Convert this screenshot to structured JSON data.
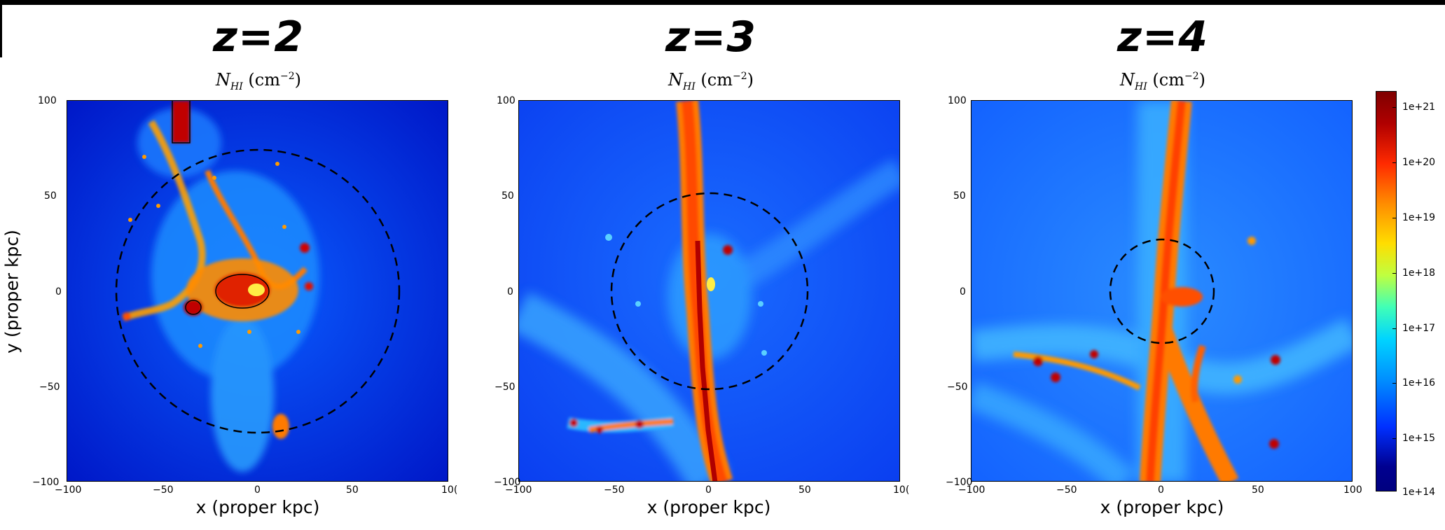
{
  "figure": {
    "panels": [
      {
        "redshift": "z=2",
        "title_var": "N",
        "title_sub": "HI",
        "title_unit_pre": " (cm",
        "title_unit_sup": "−2",
        "title_unit_post": ")"
      },
      {
        "redshift": "z=3",
        "title_var": "N",
        "title_sub": "HI",
        "title_unit_pre": " (cm",
        "title_unit_sup": "−2",
        "title_unit_post": ")"
      },
      {
        "redshift": "z=4",
        "title_var": "N",
        "title_sub": "HI",
        "title_unit_pre": " (cm",
        "title_unit_sup": "−2",
        "title_unit_post": ")"
      }
    ],
    "xlabel": "x (proper kpc)",
    "ylabel": "y (proper kpc)",
    "x_ticks": [
      "−100",
      "−50",
      "0",
      "50",
      "100"
    ],
    "x_ticks_clipped_last": "10(",
    "y_ticks": [
      "100",
      "50",
      "0",
      "−50",
      "−100"
    ],
    "colorbar": {
      "ticks": [
        "1e+21",
        "1e+20",
        "1e+19",
        "1e+18",
        "1e+17",
        "1e+16",
        "1e+15",
        "1e+14"
      ],
      "colors": [
        "#7f0000",
        "#ff2a00",
        "#ffdd00",
        "#40ffb7",
        "#00d4ff",
        "#0030ff",
        "#00007f"
      ]
    }
  }
}
